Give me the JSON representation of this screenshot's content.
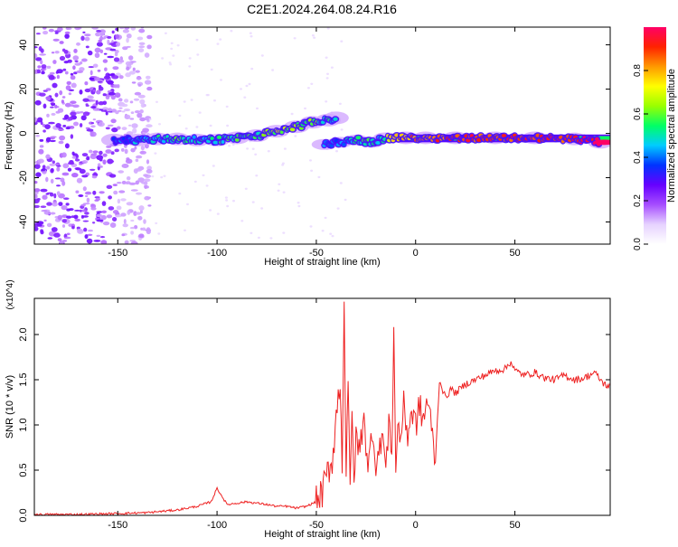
{
  "title": "C2E1.2024.264.08.24.R16",
  "chart_data": [
    {
      "type": "heatmap",
      "xlabel": "Height of straight line (km)",
      "ylabel": "Frequency (Hz)",
      "xlim": [
        -192,
        98
      ],
      "ylim": [
        -50,
        48
      ],
      "xticks": [
        -150,
        -100,
        -50,
        0,
        50
      ],
      "yticks": [
        -40,
        -20,
        0,
        20,
        40
      ],
      "colorbar": {
        "label": "Normalized spectral amplitude",
        "range": [
          0,
          1
        ],
        "ticks": [
          "0.0",
          "0.2",
          "0.4",
          "0.6",
          "0.8"
        ],
        "colors": [
          "#ffffff",
          "#e6d2ff",
          "#a64dff",
          "#6600ff",
          "#0033ff",
          "#00ccff",
          "#00ff66",
          "#99ff00",
          "#ffff00",
          "#ff9900",
          "#ff2200",
          "#ff0066"
        ]
      },
      "ridge": [
        {
          "x": -152,
          "y": -3,
          "amp": 0.35
        },
        {
          "x": -140,
          "y": -3,
          "amp": 0.45
        },
        {
          "x": -130,
          "y": -2.5,
          "amp": 0.5
        },
        {
          "x": -120,
          "y": -2.5,
          "amp": 0.55
        },
        {
          "x": -110,
          "y": -3,
          "amp": 0.5
        },
        {
          "x": -100,
          "y": -3,
          "amp": 0.5
        },
        {
          "x": -90,
          "y": -2,
          "amp": 0.55
        },
        {
          "x": -80,
          "y": -1,
          "amp": 0.55
        },
        {
          "x": -70,
          "y": 1,
          "amp": 0.65
        },
        {
          "x": -60,
          "y": 3,
          "amp": 0.6
        },
        {
          "x": -52,
          "y": 5,
          "amp": 0.6
        },
        {
          "x": -44,
          "y": 6,
          "amp": 0.5
        },
        {
          "x": -40,
          "y": 7,
          "amp": 0.45
        },
        {
          "x": -46,
          "y": -5,
          "amp": 0.45
        },
        {
          "x": -38,
          "y": -4,
          "amp": 0.4
        },
        {
          "x": -30,
          "y": -3,
          "amp": 0.5
        },
        {
          "x": -22,
          "y": -4,
          "amp": 0.55
        },
        {
          "x": -15,
          "y": -2,
          "amp": 0.5
        },
        {
          "x": -5,
          "y": -2,
          "amp": 0.8
        },
        {
          "x": 5,
          "y": -2,
          "amp": 0.85
        },
        {
          "x": 20,
          "y": -2,
          "amp": 0.9
        },
        {
          "x": 40,
          "y": -2,
          "amp": 0.9
        },
        {
          "x": 60,
          "y": -2,
          "amp": 0.9
        },
        {
          "x": 80,
          "y": -2.5,
          "amp": 0.9
        },
        {
          "x": 93,
          "y": -4,
          "amp": 1.0
        }
      ]
    },
    {
      "type": "line",
      "xlabel": "Height of straight line (km)",
      "ylabel": "SNR (10 * v/v)",
      "y_multiplier": "(x10^4)",
      "xlim": [
        -192,
        98
      ],
      "ylim": [
        0,
        2.4
      ],
      "xticks": [
        -150,
        -100,
        -50,
        0,
        50
      ],
      "yticks": [
        "0.0",
        "0.5",
        "1.0",
        "1.5",
        "2.0"
      ],
      "series": [
        {
          "color": "#ee2222",
          "x": [
            -192,
            -170,
            -150,
            -135,
            -120,
            -110,
            -103,
            -100,
            -95,
            -85,
            -75,
            -70,
            -65,
            -60,
            -55,
            -50,
            -47,
            -44,
            -42,
            -40,
            -38,
            -37,
            -36,
            -35,
            -34,
            -33,
            -32,
            -31,
            -30,
            -28,
            -26,
            -24,
            -22,
            -20,
            -18,
            -17,
            -15,
            -13,
            -12,
            -11,
            -10,
            -9,
            -8,
            -6,
            -4,
            -2,
            0,
            2,
            4,
            6,
            8,
            10,
            12,
            15,
            18,
            20,
            25,
            30,
            35,
            40,
            45,
            48,
            50,
            55,
            60,
            65,
            70,
            75,
            80,
            85,
            90,
            95,
            98
          ],
          "y": [
            0.01,
            0.01,
            0.02,
            0.03,
            0.06,
            0.1,
            0.15,
            0.3,
            0.12,
            0.15,
            0.12,
            0.1,
            0.1,
            0.08,
            0.1,
            0.15,
            0.25,
            0.5,
            0.6,
            1.1,
            1.5,
            0.6,
            2.4,
            0.4,
            1.4,
            0.3,
            1.3,
            0.2,
            0.9,
            0.7,
            1.2,
            0.4,
            1.0,
            0.6,
            0.7,
            1.0,
            0.5,
            1.1,
            0.6,
            2.15,
            0.4,
            1.1,
            0.8,
            1.2,
            0.9,
            1.15,
            1.0,
            1.2,
            1.05,
            1.3,
            0.95,
            0.6,
            1.5,
            1.3,
            1.4,
            1.35,
            1.45,
            1.5,
            1.55,
            1.6,
            1.62,
            1.7,
            1.6,
            1.55,
            1.58,
            1.52,
            1.5,
            1.55,
            1.5,
            1.52,
            1.58,
            1.45,
            1.42
          ]
        }
      ]
    }
  ]
}
